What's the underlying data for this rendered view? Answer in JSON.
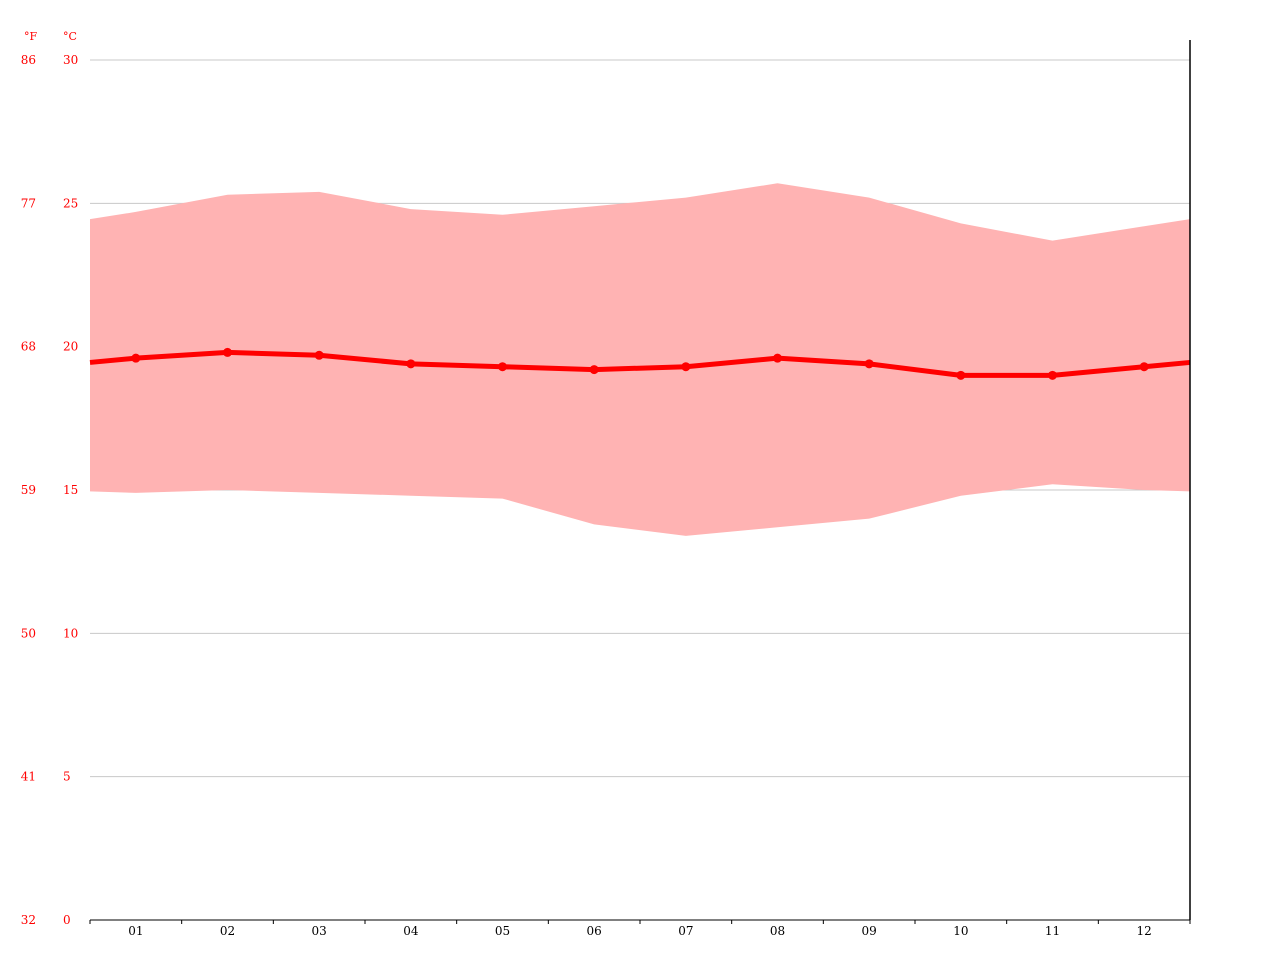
{
  "chart_data": {
    "type": "area",
    "title": "",
    "xlabel": "",
    "ylabel": "",
    "y_unit_left": "°F",
    "y_unit_right": "°C",
    "categories": [
      "01",
      "02",
      "03",
      "04",
      "05",
      "06",
      "07",
      "08",
      "09",
      "10",
      "11",
      "12"
    ],
    "ylim": [
      0,
      30
    ],
    "ticks_c": [
      0,
      5,
      10,
      15,
      20,
      25,
      30
    ],
    "ticks_f": [
      "32",
      "41",
      "50",
      "59",
      "68",
      "77",
      "86"
    ],
    "grid": true,
    "series": [
      {
        "role": "max",
        "values": [
          24.7,
          25.3,
          25.4,
          24.8,
          24.6,
          24.9,
          25.2,
          25.7,
          25.2,
          24.3,
          23.7,
          24.2
        ]
      },
      {
        "role": "min",
        "values": [
          14.9,
          15.0,
          14.9,
          14.8,
          14.7,
          13.8,
          13.4,
          13.7,
          14.0,
          14.8,
          15.2,
          15.0
        ]
      },
      {
        "role": "mean",
        "values": [
          19.6,
          19.8,
          19.7,
          19.4,
          19.3,
          19.2,
          19.3,
          19.6,
          19.4,
          19.0,
          19.0,
          19.3
        ]
      }
    ],
    "colors": {
      "band": "#ffb3b3",
      "line": "#ff0000",
      "axis_labels": "#ff0000",
      "grid": "#c8c8c8"
    }
  }
}
